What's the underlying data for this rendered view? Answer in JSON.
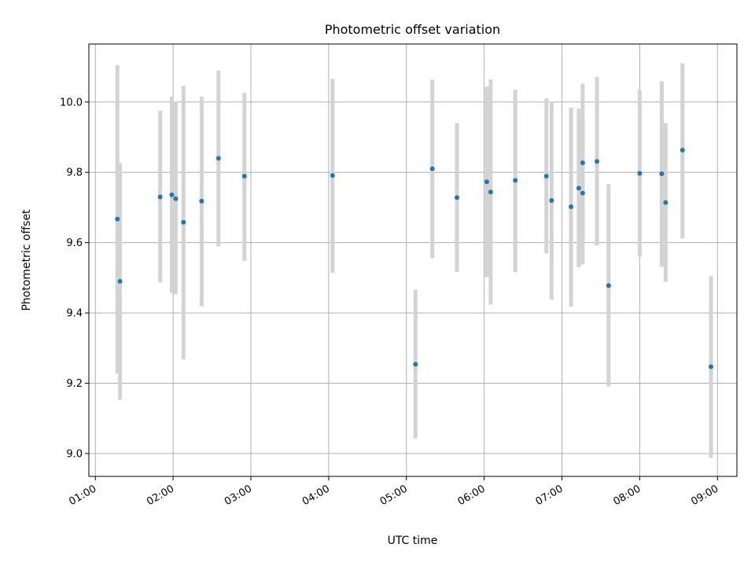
{
  "chart_data": {
    "type": "scatter",
    "title": "Photometric offset variation",
    "xlabel": "UTC time",
    "ylabel": "Photometric offset",
    "xlim": [
      "00:55",
      "09:15"
    ],
    "ylim": [
      8.935,
      10.165
    ],
    "x_ticks": [
      "01:00",
      "02:00",
      "03:00",
      "04:00",
      "05:00",
      "06:00",
      "07:00",
      "08:00",
      "09:00"
    ],
    "y_ticks": [
      "9.0",
      "9.2",
      "9.4",
      "9.6",
      "9.8",
      "10.0"
    ],
    "grid": true,
    "error_bar_style": "vertical bars",
    "colors": {
      "point": "#1f77b4",
      "errorbar": "#d3d3d3",
      "grid": "#b0b0b0",
      "axes": "#000000"
    },
    "series": [
      {
        "points": [
          {
            "x": "01:17",
            "y": 9.667,
            "ylo": 9.227,
            "yhi": 10.105
          },
          {
            "x": "01:19",
            "y": 9.49,
            "ylo": 9.153,
            "yhi": 9.826
          },
          {
            "x": "01:50",
            "y": 9.73,
            "ylo": 9.487,
            "yhi": 9.975
          },
          {
            "x": "01:59",
            "y": 9.736,
            "ylo": 9.457,
            "yhi": 10.015
          },
          {
            "x": "02:02",
            "y": 9.725,
            "ylo": 9.453,
            "yhi": 10.0
          },
          {
            "x": "02:08",
            "y": 9.658,
            "ylo": 9.268,
            "yhi": 10.046
          },
          {
            "x": "02:22",
            "y": 9.718,
            "ylo": 9.419,
            "yhi": 10.015
          },
          {
            "x": "02:35",
            "y": 9.84,
            "ylo": 9.589,
            "yhi": 10.089
          },
          {
            "x": "02:55",
            "y": 9.789,
            "ylo": 9.548,
            "yhi": 10.026
          },
          {
            "x": "04:03",
            "y": 9.791,
            "ylo": 9.514,
            "yhi": 10.066
          },
          {
            "x": "05:07",
            "y": 9.254,
            "ylo": 9.043,
            "yhi": 9.466
          },
          {
            "x": "05:20",
            "y": 9.81,
            "ylo": 9.556,
            "yhi": 10.064
          },
          {
            "x": "05:39",
            "y": 9.728,
            "ylo": 9.517,
            "yhi": 9.94
          },
          {
            "x": "06:02",
            "y": 9.773,
            "ylo": 9.502,
            "yhi": 10.044
          },
          {
            "x": "06:05",
            "y": 9.744,
            "ylo": 9.424,
            "yhi": 10.064
          },
          {
            "x": "06:24",
            "y": 9.777,
            "ylo": 9.516,
            "yhi": 10.035
          },
          {
            "x": "06:48",
            "y": 9.789,
            "ylo": 9.569,
            "yhi": 10.01
          },
          {
            "x": "06:52",
            "y": 9.72,
            "ylo": 9.438,
            "yhi": 10.002
          },
          {
            "x": "07:07",
            "y": 9.702,
            "ylo": 9.418,
            "yhi": 9.984
          },
          {
            "x": "07:13",
            "y": 9.755,
            "ylo": 9.53,
            "yhi": 9.981
          },
          {
            "x": "07:16",
            "y": 9.741,
            "ylo": 9.538,
            "yhi": 9.946
          },
          {
            "x": "07:16",
            "y": 9.827,
            "ylo": 9.6,
            "yhi": 10.052
          },
          {
            "x": "07:27",
            "y": 9.831,
            "ylo": 9.592,
            "yhi": 10.071
          },
          {
            "x": "07:36",
            "y": 9.478,
            "ylo": 9.191,
            "yhi": 9.766
          },
          {
            "x": "08:00",
            "y": 9.797,
            "ylo": 9.56,
            "yhi": 10.035
          },
          {
            "x": "08:17",
            "y": 9.796,
            "ylo": 9.531,
            "yhi": 10.059
          },
          {
            "x": "08:20",
            "y": 9.714,
            "ylo": 9.489,
            "yhi": 9.94
          },
          {
            "x": "08:33",
            "y": 9.863,
            "ylo": 9.612,
            "yhi": 10.11
          },
          {
            "x": "08:55",
            "y": 9.247,
            "ylo": 8.988,
            "yhi": 9.505
          }
        ]
      }
    ]
  }
}
